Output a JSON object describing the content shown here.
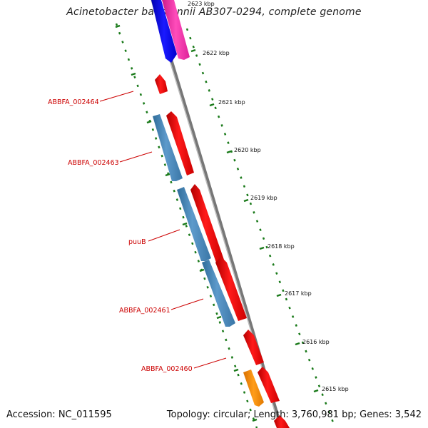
{
  "title": "Acinetobacter baumannii AB307-0294, complete genome",
  "accession": "Accession: NC_011595",
  "summary": "Topology: circular; Length: 3,760,981 bp; Genes: 3,542",
  "colors": {
    "backbone": "#8a8a8a",
    "ticks": "#1a7a1a",
    "forward_gene": "#ff0000",
    "reverse_gene": "#4682b4",
    "label": "#cc0000",
    "blue_gene": "#0000ff",
    "pink_gene": "#ff33aa",
    "orange_gene": "#ff8c00"
  },
  "kbp_labels": [
    "2623 kbp",
    "2622 kbp",
    "2621 kbp",
    "2620 kbp",
    "2619 kbp",
    "2618 kbp",
    "2617 kbp",
    "2616 kbp",
    "2615 kbp"
  ],
  "gene_labels": [
    "ABBFA_002464",
    "ABBFA_002463",
    "puuB",
    "ABBFA_002461",
    "ABBFA_002460"
  ]
}
